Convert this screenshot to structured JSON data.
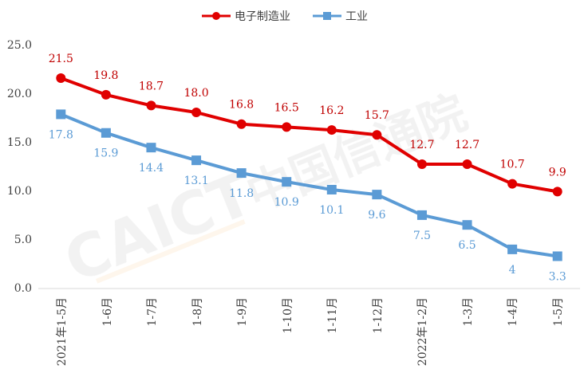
{
  "chart_data": {
    "type": "line",
    "title": "",
    "xlabel": "",
    "ylabel": "",
    "categories": [
      "2021年1-5月",
      "1-6月",
      "1-7月",
      "1-8月",
      "1-9月",
      "1-10月",
      "1-11月",
      "1-12月",
      "2022年1-2月",
      "1-3月",
      "1-4月",
      "1-5月"
    ],
    "series": [
      {
        "name": "电子制造业",
        "color": "#e00000",
        "label_color": "#c00000",
        "marker": "circle",
        "values": [
          21.5,
          19.8,
          18.7,
          18.0,
          16.8,
          16.5,
          16.2,
          15.7,
          12.7,
          12.7,
          10.7,
          9.9
        ],
        "labels": [
          "21.5",
          "19.8",
          "18.7",
          "18.0",
          "16.8",
          "16.5",
          "16.2",
          "15.7",
          "12.7",
          "12.7",
          "10.7",
          "9.9"
        ]
      },
      {
        "name": "工业",
        "color": "#5b9bd5",
        "label_color": "#5b9bd5",
        "marker": "square",
        "values": [
          17.8,
          15.9,
          14.4,
          13.1,
          11.8,
          10.9,
          10.1,
          9.6,
          7.5,
          6.5,
          4,
          3.3
        ],
        "labels": [
          "17.8",
          "15.9",
          "14.4",
          "13.1",
          "11.8",
          "10.9",
          "10.1",
          "9.6",
          "7.5",
          "6.5",
          "4",
          "3.3"
        ]
      }
    ],
    "ylim": [
      0,
      25
    ],
    "yticks": [
      "0.0",
      "5.0",
      "10.0",
      "15.0",
      "20.0",
      "25.0"
    ],
    "grid": false,
    "legend_position": "top-center"
  },
  "watermark": {
    "latin": "CAICT",
    "cjk": "中国信通院"
  }
}
